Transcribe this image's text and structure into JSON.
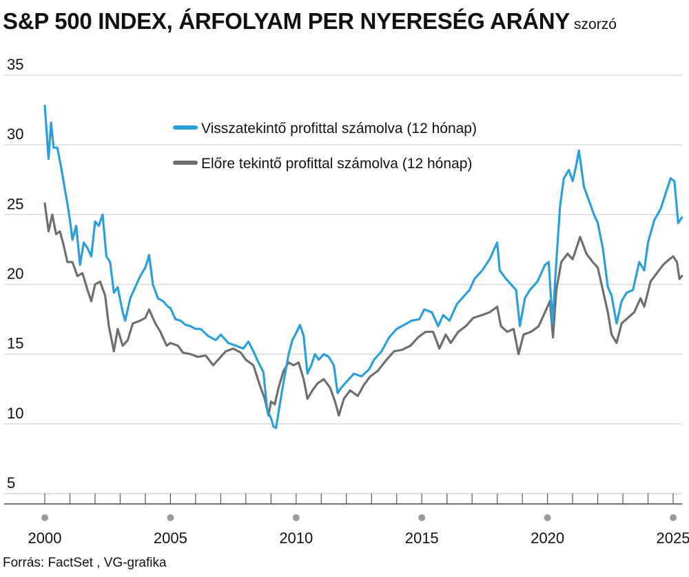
{
  "chart_data": {
    "type": "line",
    "title": "S&P 500 INDEX, ÁRFOLYAM PER NYERESÉG ARÁNY",
    "unit": "szorzó",
    "ylim": [
      5,
      35
    ],
    "yticks": [
      5,
      10,
      15,
      20,
      25,
      30,
      35
    ],
    "xlim": [
      2000,
      2025.5
    ],
    "xticks": [
      2000,
      2005,
      2010,
      2015,
      2020,
      2025
    ],
    "grid": "horizontal",
    "legend_position": "top-center",
    "series": [
      {
        "name": "Visszatekintő profittal számolva (12 hónap)",
        "color": "#2b9fdb",
        "points": [
          [
            2000.0,
            32.8
          ],
          [
            2000.15,
            29.0
          ],
          [
            2000.25,
            31.6
          ],
          [
            2000.35,
            29.8
          ],
          [
            2000.5,
            29.8
          ],
          [
            2000.65,
            28.4
          ],
          [
            2000.8,
            26.8
          ],
          [
            2000.9,
            25.8
          ],
          [
            2001.0,
            24.6
          ],
          [
            2001.1,
            23.2
          ],
          [
            2001.25,
            24.2
          ],
          [
            2001.4,
            21.4
          ],
          [
            2001.55,
            23.0
          ],
          [
            2001.7,
            22.6
          ],
          [
            2001.85,
            22.0
          ],
          [
            2002.0,
            24.5
          ],
          [
            2002.15,
            24.2
          ],
          [
            2002.3,
            25.0
          ],
          [
            2002.45,
            22.0
          ],
          [
            2002.6,
            21.6
          ],
          [
            2002.75,
            19.4
          ],
          [
            2002.9,
            19.8
          ],
          [
            2003.1,
            18.0
          ],
          [
            2003.2,
            17.4
          ],
          [
            2003.4,
            19.0
          ],
          [
            2003.6,
            19.8
          ],
          [
            2003.8,
            20.6
          ],
          [
            2004.0,
            21.2
          ],
          [
            2004.15,
            22.1
          ],
          [
            2004.3,
            20.0
          ],
          [
            2004.5,
            19.0
          ],
          [
            2004.7,
            18.8
          ],
          [
            2004.9,
            18.4
          ],
          [
            2005.0,
            18.3
          ],
          [
            2005.2,
            17.5
          ],
          [
            2005.4,
            17.4
          ],
          [
            2005.6,
            17.1
          ],
          [
            2005.8,
            17.0
          ],
          [
            2006.0,
            16.8
          ],
          [
            2006.2,
            16.8
          ],
          [
            2006.5,
            16.3
          ],
          [
            2006.8,
            16.0
          ],
          [
            2007.0,
            16.4
          ],
          [
            2007.3,
            15.8
          ],
          [
            2007.6,
            15.6
          ],
          [
            2007.9,
            15.4
          ],
          [
            2008.1,
            15.9
          ],
          [
            2008.3,
            15.2
          ],
          [
            2008.5,
            14.4
          ],
          [
            2008.7,
            13.7
          ],
          [
            2008.85,
            11.0
          ],
          [
            2009.0,
            10.4
          ],
          [
            2009.1,
            9.8
          ],
          [
            2009.2,
            9.7
          ],
          [
            2009.35,
            11.4
          ],
          [
            2009.5,
            13.0
          ],
          [
            2009.7,
            15.0
          ],
          [
            2009.85,
            16.0
          ],
          [
            2010.0,
            16.5
          ],
          [
            2010.15,
            17.1
          ],
          [
            2010.3,
            16.3
          ],
          [
            2010.45,
            13.6
          ],
          [
            2010.6,
            14.2
          ],
          [
            2010.75,
            15.0
          ],
          [
            2010.9,
            14.6
          ],
          [
            2011.1,
            15.0
          ],
          [
            2011.3,
            14.8
          ],
          [
            2011.5,
            14.2
          ],
          [
            2011.65,
            12.2
          ],
          [
            2011.8,
            12.6
          ],
          [
            2012.0,
            13.0
          ],
          [
            2012.3,
            13.6
          ],
          [
            2012.6,
            13.4
          ],
          [
            2012.9,
            13.9
          ],
          [
            2013.1,
            14.6
          ],
          [
            2013.4,
            15.2
          ],
          [
            2013.7,
            16.2
          ],
          [
            2014.0,
            16.8
          ],
          [
            2014.3,
            17.1
          ],
          [
            2014.6,
            17.4
          ],
          [
            2014.9,
            17.5
          ],
          [
            2015.1,
            18.2
          ],
          [
            2015.4,
            18.0
          ],
          [
            2015.65,
            17.0
          ],
          [
            2015.85,
            17.8
          ],
          [
            2016.1,
            17.4
          ],
          [
            2016.4,
            18.6
          ],
          [
            2016.7,
            19.2
          ],
          [
            2016.9,
            19.6
          ],
          [
            2017.1,
            20.4
          ],
          [
            2017.4,
            21.0
          ],
          [
            2017.7,
            21.8
          ],
          [
            2018.0,
            23.0
          ],
          [
            2018.1,
            21.0
          ],
          [
            2018.35,
            20.4
          ],
          [
            2018.55,
            20.0
          ],
          [
            2018.75,
            19.6
          ],
          [
            2018.9,
            17.0
          ],
          [
            2019.1,
            19.0
          ],
          [
            2019.3,
            19.6
          ],
          [
            2019.6,
            20.2
          ],
          [
            2019.9,
            21.4
          ],
          [
            2020.05,
            21.6
          ],
          [
            2020.2,
            17.2
          ],
          [
            2020.35,
            21.6
          ],
          [
            2020.5,
            25.6
          ],
          [
            2020.65,
            27.6
          ],
          [
            2020.85,
            28.2
          ],
          [
            2021.0,
            27.4
          ],
          [
            2021.15,
            28.6
          ],
          [
            2021.25,
            29.6
          ],
          [
            2021.45,
            27.0
          ],
          [
            2021.65,
            26.0
          ],
          [
            2021.85,
            25.0
          ],
          [
            2022.0,
            24.4
          ],
          [
            2022.2,
            22.6
          ],
          [
            2022.4,
            19.8
          ],
          [
            2022.55,
            19.2
          ],
          [
            2022.75,
            17.2
          ],
          [
            2022.95,
            18.8
          ],
          [
            2023.15,
            19.4
          ],
          [
            2023.4,
            19.6
          ],
          [
            2023.65,
            21.6
          ],
          [
            2023.85,
            21.0
          ],
          [
            2024.0,
            23.0
          ],
          [
            2024.25,
            24.6
          ],
          [
            2024.5,
            25.4
          ],
          [
            2024.75,
            26.8
          ],
          [
            2024.9,
            27.6
          ],
          [
            2025.05,
            27.4
          ],
          [
            2025.2,
            24.4
          ],
          [
            2025.35,
            24.8
          ]
        ]
      },
      {
        "name": "Előre tekintő profittal számolva (12 hónap)",
        "color": "#6e6e6e",
        "points": [
          [
            2000.0,
            25.8
          ],
          [
            2000.15,
            23.8
          ],
          [
            2000.3,
            25.0
          ],
          [
            2000.45,
            23.6
          ],
          [
            2000.6,
            23.8
          ],
          [
            2000.75,
            22.8
          ],
          [
            2000.9,
            21.6
          ],
          [
            2001.1,
            21.6
          ],
          [
            2001.3,
            20.6
          ],
          [
            2001.5,
            20.8
          ],
          [
            2001.7,
            19.6
          ],
          [
            2001.85,
            18.8
          ],
          [
            2002.0,
            20.0
          ],
          [
            2002.2,
            20.2
          ],
          [
            2002.4,
            19.2
          ],
          [
            2002.55,
            17.0
          ],
          [
            2002.75,
            15.2
          ],
          [
            2002.9,
            16.8
          ],
          [
            2003.1,
            15.6
          ],
          [
            2003.3,
            16.0
          ],
          [
            2003.5,
            17.2
          ],
          [
            2003.8,
            17.4
          ],
          [
            2004.0,
            17.6
          ],
          [
            2004.15,
            18.2
          ],
          [
            2004.4,
            17.2
          ],
          [
            2004.6,
            16.6
          ],
          [
            2004.85,
            15.6
          ],
          [
            2005.0,
            15.8
          ],
          [
            2005.3,
            15.6
          ],
          [
            2005.5,
            15.1
          ],
          [
            2005.8,
            15.0
          ],
          [
            2006.1,
            14.8
          ],
          [
            2006.4,
            14.9
          ],
          [
            2006.7,
            14.2
          ],
          [
            2006.9,
            14.6
          ],
          [
            2007.2,
            15.2
          ],
          [
            2007.5,
            15.4
          ],
          [
            2007.8,
            15.1
          ],
          [
            2008.0,
            14.6
          ],
          [
            2008.3,
            14.2
          ],
          [
            2008.55,
            12.8
          ],
          [
            2008.75,
            11.8
          ],
          [
            2008.9,
            10.6
          ],
          [
            2009.0,
            11.6
          ],
          [
            2009.15,
            11.4
          ],
          [
            2009.3,
            12.6
          ],
          [
            2009.5,
            13.8
          ],
          [
            2009.7,
            14.4
          ],
          [
            2009.9,
            14.2
          ],
          [
            2010.1,
            14.4
          ],
          [
            2010.3,
            13.2
          ],
          [
            2010.45,
            11.8
          ],
          [
            2010.65,
            12.4
          ],
          [
            2010.85,
            12.9
          ],
          [
            2011.1,
            13.2
          ],
          [
            2011.35,
            12.6
          ],
          [
            2011.55,
            11.6
          ],
          [
            2011.7,
            10.6
          ],
          [
            2011.9,
            11.8
          ],
          [
            2012.15,
            12.4
          ],
          [
            2012.45,
            12.0
          ],
          [
            2012.7,
            12.8
          ],
          [
            2012.95,
            13.4
          ],
          [
            2013.25,
            13.8
          ],
          [
            2013.6,
            14.6
          ],
          [
            2013.9,
            15.2
          ],
          [
            2014.2,
            15.3
          ],
          [
            2014.55,
            15.6
          ],
          [
            2014.85,
            16.2
          ],
          [
            2015.15,
            16.6
          ],
          [
            2015.45,
            16.6
          ],
          [
            2015.7,
            15.4
          ],
          [
            2015.95,
            16.4
          ],
          [
            2016.15,
            15.8
          ],
          [
            2016.45,
            16.6
          ],
          [
            2016.75,
            17.0
          ],
          [
            2017.05,
            17.6
          ],
          [
            2017.4,
            17.8
          ],
          [
            2017.7,
            18.0
          ],
          [
            2018.0,
            18.4
          ],
          [
            2018.15,
            17.0
          ],
          [
            2018.4,
            16.6
          ],
          [
            2018.65,
            16.8
          ],
          [
            2018.85,
            15.0
          ],
          [
            2019.05,
            16.4
          ],
          [
            2019.35,
            16.6
          ],
          [
            2019.65,
            17.0
          ],
          [
            2019.95,
            18.2
          ],
          [
            2020.1,
            18.8
          ],
          [
            2020.22,
            16.2
          ],
          [
            2020.35,
            19.6
          ],
          [
            2020.55,
            21.6
          ],
          [
            2020.8,
            22.2
          ],
          [
            2021.0,
            21.8
          ],
          [
            2021.15,
            22.6
          ],
          [
            2021.3,
            23.4
          ],
          [
            2021.55,
            22.2
          ],
          [
            2021.8,
            21.6
          ],
          [
            2022.0,
            21.2
          ],
          [
            2022.2,
            19.6
          ],
          [
            2022.4,
            18.0
          ],
          [
            2022.55,
            16.4
          ],
          [
            2022.75,
            15.8
          ],
          [
            2022.95,
            17.2
          ],
          [
            2023.2,
            17.6
          ],
          [
            2023.45,
            18.0
          ],
          [
            2023.7,
            19.0
          ],
          [
            2023.85,
            18.4
          ],
          [
            2024.1,
            20.2
          ],
          [
            2024.35,
            20.8
          ],
          [
            2024.6,
            21.4
          ],
          [
            2024.85,
            21.8
          ],
          [
            2025.0,
            22.0
          ],
          [
            2025.15,
            21.6
          ],
          [
            2025.25,
            20.4
          ],
          [
            2025.35,
            20.6
          ]
        ]
      }
    ]
  },
  "source": "Forrás: FactSet , VG-grafika"
}
